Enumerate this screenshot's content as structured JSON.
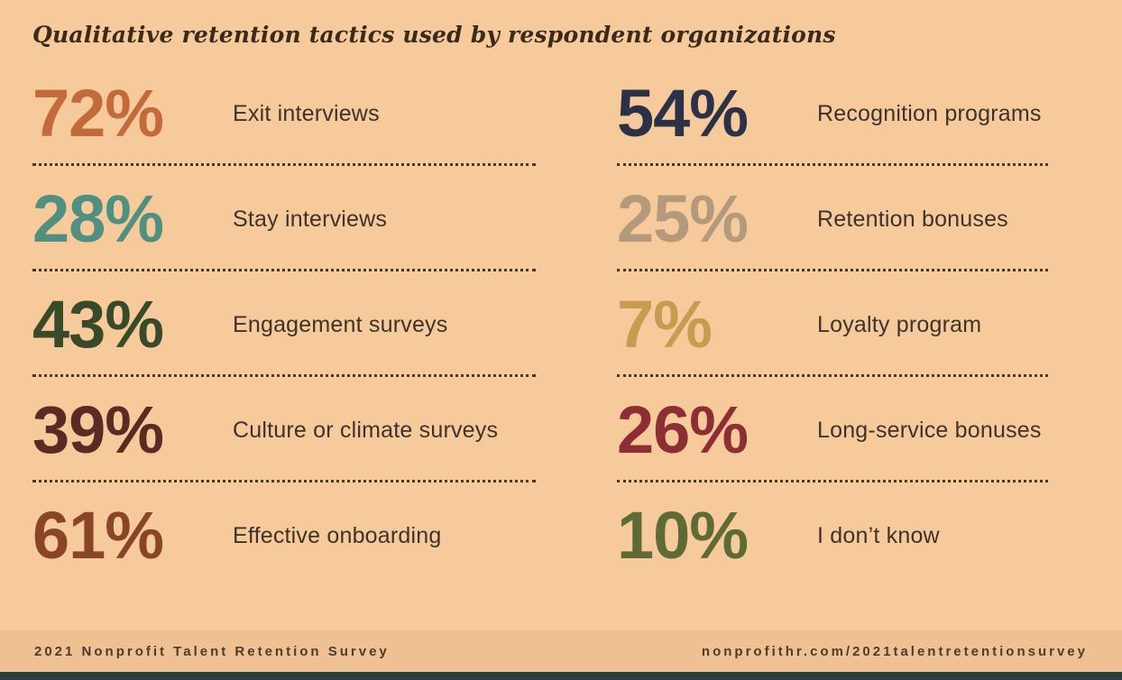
{
  "chart_data": {
    "type": "table",
    "title": "Qualitative retention tactics used by respondent organizations",
    "legend_position": "none",
    "grid": false,
    "columns": [
      {
        "items": [
          {
            "label": "Exit interviews",
            "value": 72,
            "display": "72%",
            "color": "#c4693a"
          },
          {
            "label": "Stay interviews",
            "value": 28,
            "display": "28%",
            "color": "#4f9080"
          },
          {
            "label": "Engagement surveys",
            "value": 43,
            "display": "43%",
            "color": "#394a2a"
          },
          {
            "label": "Culture or climate surveys",
            "value": 39,
            "display": "39%",
            "color": "#5b2a24"
          },
          {
            "label": "Effective onboarding",
            "value": 61,
            "display": "61%",
            "color": "#8a4527"
          }
        ]
      },
      {
        "items": [
          {
            "label": "Recognition programs",
            "value": 54,
            "display": "54%",
            "color": "#2b3247"
          },
          {
            "label": "Retention bonuses",
            "value": 25,
            "display": "25%",
            "color": "#b49a7c"
          },
          {
            "label": "Loyalty program",
            "value": 7,
            "display": "7%",
            "color": "#c99b4f"
          },
          {
            "label": "Long-service bonuses",
            "value": 26,
            "display": "26%",
            "color": "#8c2e33"
          },
          {
            "label": "I don’t know",
            "value": 10,
            "display": "10%",
            "color": "#5f6b36"
          }
        ]
      }
    ]
  },
  "footer": {
    "left": "2021 Nonprofit Talent Retention Survey",
    "right": "nonprofithr.com/2021talentretentionsurvey"
  },
  "colors": {
    "background": "#f6ca9b",
    "footer_bar": "#eec092",
    "bottom_strip": "#27403f",
    "title_text": "#3a2a1a",
    "label_text": "#3e332a",
    "divider": "#46382a"
  }
}
